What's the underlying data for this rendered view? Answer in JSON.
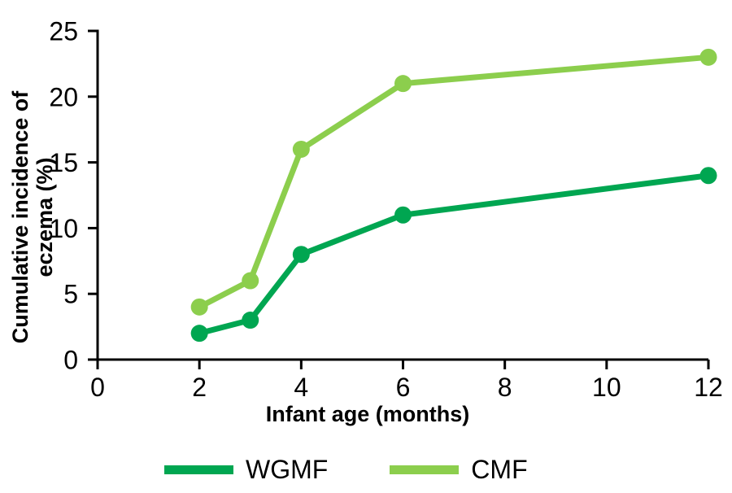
{
  "chart_data": {
    "type": "line",
    "title": "",
    "xlabel": "Infant age (months)",
    "ylabel": "Cumulative incidence of eczema (%)",
    "ylabel_lines": [
      "Cumulative incidence of",
      "eczema (%)"
    ],
    "x": [
      2,
      3,
      4,
      6,
      12
    ],
    "series": [
      {
        "name": "WGMF",
        "color": "#00A651",
        "values": [
          2,
          3,
          8,
          11,
          14
        ]
      },
      {
        "name": "CMF",
        "color": "#8CCE4D",
        "values": [
          4,
          6,
          16,
          21,
          23
        ]
      }
    ],
    "xlim": [
      0,
      12
    ],
    "ylim": [
      0,
      25
    ],
    "x_ticks": [
      0,
      2,
      4,
      6,
      8,
      10,
      12
    ],
    "y_ticks": [
      0,
      5,
      10,
      15,
      20,
      25
    ],
    "grid": false,
    "legend_position": "bottom",
    "axis_color": "#000000",
    "marker": "circle",
    "line_width": 7,
    "marker_radius": 10.5
  }
}
